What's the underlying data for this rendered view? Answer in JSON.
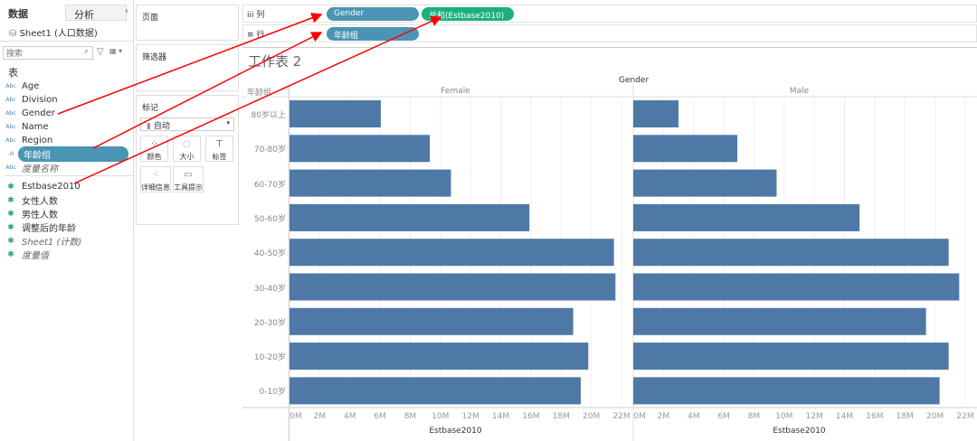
{
  "left_panel": {
    "tabs": [
      "数据",
      "分析"
    ],
    "datasource": "Sheet1 (人口数据)",
    "search_placeholder": "搜索",
    "section": "表",
    "dimensions": [
      "Age",
      "Division",
      "Gender",
      "Name",
      "Region",
      "年龄组",
      "度量名称"
    ],
    "measures": [
      "Estbase2010",
      "女性人数",
      "男性人数",
      "调整后的年龄",
      "Sheet1 (计数)",
      "度量值"
    ]
  },
  "cards": {
    "pages": "页面",
    "filters": "筛选器",
    "marks": "标记",
    "mark_type": "自动",
    "mark_buttons": [
      "颜色",
      "大小",
      "标签",
      "详细信息",
      "工具提示"
    ]
  },
  "shelves": {
    "columns_label": "列",
    "rows_label": "行",
    "columns": [
      "Gender",
      "总和(Estbase2010)"
    ],
    "rows": [
      "年龄组"
    ]
  },
  "colors": {
    "dimension_pill": "#4a95b3",
    "measure_pill": "#1bb07a",
    "bar": "#4e79a7",
    "arrow": "#ff0000"
  },
  "sheet_title": "工作表 2",
  "chart_data": {
    "type": "bar",
    "orientation": "horizontal",
    "column_header": "Gender",
    "row_header": "年龄组",
    "categories": [
      "80岁以上",
      "70-80岁",
      "60-70岁",
      "50-60岁",
      "40-50岁",
      "30-40岁",
      "20-30岁",
      "10-20岁",
      "0-10岁"
    ],
    "panels": [
      {
        "name": "Female",
        "xlabel": "Estbase2010",
        "values": [
          6.05,
          9.3,
          10.7,
          15.9,
          21.5,
          21.6,
          18.8,
          19.8,
          19.3
        ]
      },
      {
        "name": "Male",
        "xlabel": "Estbase2010",
        "values": [
          3.0,
          6.9,
          9.5,
          15.0,
          20.9,
          21.6,
          19.4,
          20.9,
          20.3
        ]
      }
    ],
    "unit": "M",
    "xlim": [
      0,
      22
    ],
    "ticks": [
      "0M",
      "2M",
      "4M",
      "6M",
      "8M",
      "10M",
      "12M",
      "14M",
      "16M",
      "18M",
      "20M",
      "22M"
    ],
    "grid": true
  }
}
